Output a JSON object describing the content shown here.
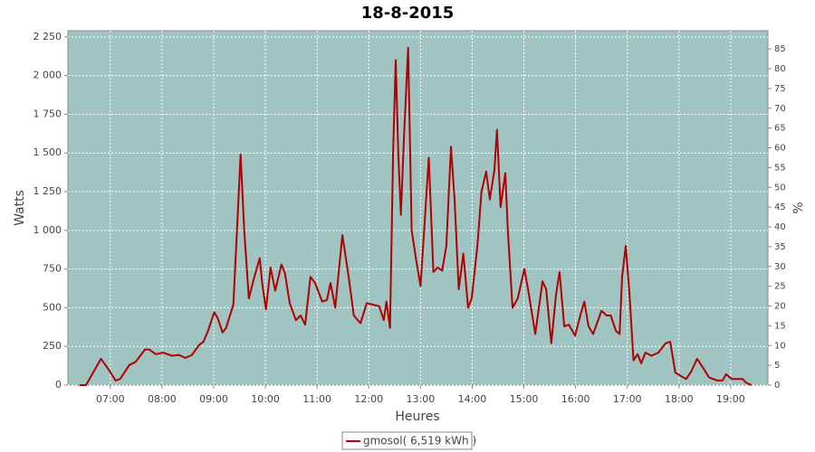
{
  "chart_data": {
    "type": "line",
    "title": "18-8-2015",
    "x_label": "Heures",
    "y_label": "Watts",
    "y2_label": "%",
    "xlim": [
      6.18,
      19.72
    ],
    "xticks": [
      {
        "value": 7,
        "label": "07:00"
      },
      {
        "value": 8,
        "label": "08:00"
      },
      {
        "value": 9,
        "label": "09:00"
      },
      {
        "value": 10,
        "label": "10:00"
      },
      {
        "value": 11,
        "label": "11:00"
      },
      {
        "value": 12,
        "label": "12:00"
      },
      {
        "value": 13,
        "label": "13:00"
      },
      {
        "value": 14,
        "label": "14:00"
      },
      {
        "value": 15,
        "label": "15:00"
      },
      {
        "value": 16,
        "label": "16:00"
      },
      {
        "value": 17,
        "label": "17:00"
      },
      {
        "value": 18,
        "label": "18:00"
      },
      {
        "value": 19,
        "label": "19:00"
      }
    ],
    "ylim": [
      0,
      2290
    ],
    "yticks": [
      0,
      250,
      500,
      750,
      {
        "value": 1000,
        "label": "1 000"
      },
      {
        "value": 1250,
        "label": "1 250"
      },
      {
        "value": 1500,
        "label": "1 500"
      },
      {
        "value": 1750,
        "label": "1 750"
      },
      {
        "value": 2000,
        "label": "2 000"
      },
      {
        "value": 2250,
        "label": "2 250"
      }
    ],
    "y2lim": [
      0,
      89.6
    ],
    "y2ticks": [
      0,
      5,
      10,
      15,
      20,
      25,
      30,
      35,
      40,
      45,
      50,
      55,
      60,
      65,
      70,
      75,
      80,
      85
    ],
    "grid": true,
    "background": "#a0c4c2",
    "legend": "bottom",
    "x": [
      6.4,
      6.53,
      6.82,
      6.97,
      7.1,
      7.19,
      7.37,
      7.49,
      7.67,
      7.75,
      7.88,
      8.02,
      8.19,
      8.33,
      8.45,
      8.58,
      8.72,
      8.8,
      8.89,
      9.01,
      9.08,
      9.17,
      9.24,
      9.38,
      9.45,
      9.52,
      9.59,
      9.68,
      9.77,
      9.89,
      9.94,
      10.01,
      10.1,
      10.19,
      10.31,
      10.38,
      10.47,
      10.59,
      10.68,
      10.77,
      10.87,
      10.96,
      11.1,
      11.19,
      11.26,
      11.35,
      11.49,
      11.61,
      11.71,
      11.84,
      11.96,
      12.08,
      12.2,
      12.29,
      12.34,
      12.41,
      12.47,
      12.52,
      12.57,
      12.62,
      12.68,
      12.76,
      12.83,
      12.92,
      13.0,
      13.07,
      13.16,
      13.25,
      13.33,
      13.42,
      13.5,
      13.59,
      13.66,
      13.74,
      13.83,
      13.92,
      13.99,
      14.1,
      14.18,
      14.27,
      14.34,
      14.43,
      14.48,
      14.55,
      14.64,
      14.69,
      14.78,
      14.88,
      15.01,
      15.09,
      15.22,
      15.36,
      15.43,
      15.53,
      15.62,
      15.69,
      15.78,
      15.87,
      15.99,
      16.1,
      16.17,
      16.25,
      16.34,
      16.5,
      16.6,
      16.68,
      16.78,
      16.85,
      16.9,
      16.97,
      17.04,
      17.12,
      17.2,
      17.27,
      17.35,
      17.47,
      17.6,
      17.74,
      17.83,
      17.93,
      18.03,
      18.14,
      18.24,
      18.35,
      18.47,
      18.58,
      18.74,
      18.84,
      18.91,
      19.02,
      19.12,
      19.23,
      19.3,
      19.4
    ],
    "series": [
      {
        "name": "gmosol( 6,519 kWh )",
        "color": "#b00000",
        "values": [
          0,
          0,
          170,
          100,
          30,
          40,
          130,
          150,
          230,
          230,
          200,
          210,
          190,
          195,
          175,
          195,
          260,
          280,
          350,
          470,
          430,
          340,
          370,
          520,
          1000,
          1490,
          1000,
          560,
          680,
          820,
          650,
          490,
          760,
          610,
          780,
          720,
          530,
          420,
          450,
          390,
          700,
          660,
          540,
          550,
          660,
          500,
          970,
          700,
          450,
          400,
          530,
          520,
          510,
          420,
          540,
          370,
          1500,
          2100,
          1500,
          1100,
          1600,
          2180,
          1000,
          800,
          640,
          1000,
          1470,
          730,
          760,
          740,
          900,
          1540,
          1200,
          620,
          850,
          500,
          560,
          900,
          1250,
          1380,
          1200,
          1390,
          1650,
          1150,
          1370,
          1000,
          500,
          560,
          750,
          600,
          330,
          670,
          620,
          270,
          580,
          730,
          380,
          390,
          320,
          460,
          540,
          380,
          330,
          480,
          450,
          450,
          350,
          330,
          700,
          900,
          600,
          160,
          200,
          140,
          210,
          190,
          210,
          270,
          280,
          80,
          60,
          40,
          90,
          170,
          110,
          50,
          30,
          30,
          70,
          40,
          40,
          40,
          15,
          0
        ]
      }
    ]
  }
}
